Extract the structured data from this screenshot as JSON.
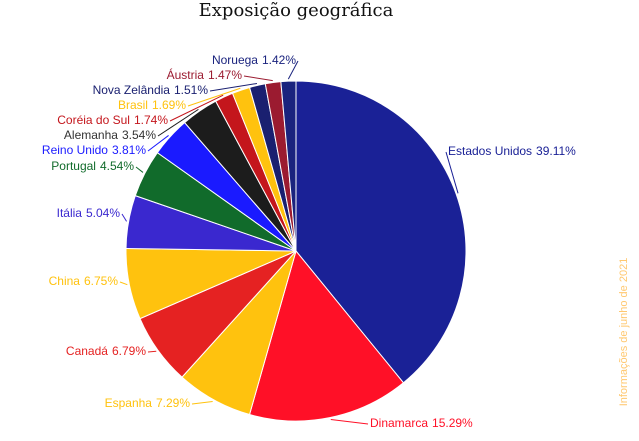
{
  "chart_data": {
    "type": "pie",
    "title": "Exposição geográfica",
    "note": "Informações de junho de 2021",
    "categories": [
      "Estados Unidos",
      "Dinamarca",
      "Espanha",
      "Canadá",
      "China",
      "Itália",
      "Portugal",
      "Reino Unido",
      "Alemanha",
      "Coréia do Sul",
      "Brasil",
      "Nova Zelândia",
      "Áustria",
      "Noruega"
    ],
    "values": [
      39.11,
      15.29,
      7.29,
      6.79,
      6.75,
      5.04,
      4.54,
      3.81,
      3.54,
      1.74,
      1.69,
      1.51,
      1.47,
      1.42
    ],
    "value_labels": [
      "39.11%",
      "15.29%",
      "7.29%",
      "6.79%",
      "6.75%",
      "5.04%",
      "4.54%",
      "3.81%",
      "3.54%",
      "1.74%",
      "1.69%",
      "1.51%",
      "1.47%",
      "1.42%"
    ],
    "colors": [
      "#1a2196",
      "#ff1027",
      "#ffc20e",
      "#e52222",
      "#ffc20e",
      "#3a28cf",
      "#116b2b",
      "#1a1aff",
      "#1c1c1c",
      "#c4161c",
      "#ffc20e",
      "#1a2070",
      "#9b1b30",
      "#1a237e"
    ]
  }
}
